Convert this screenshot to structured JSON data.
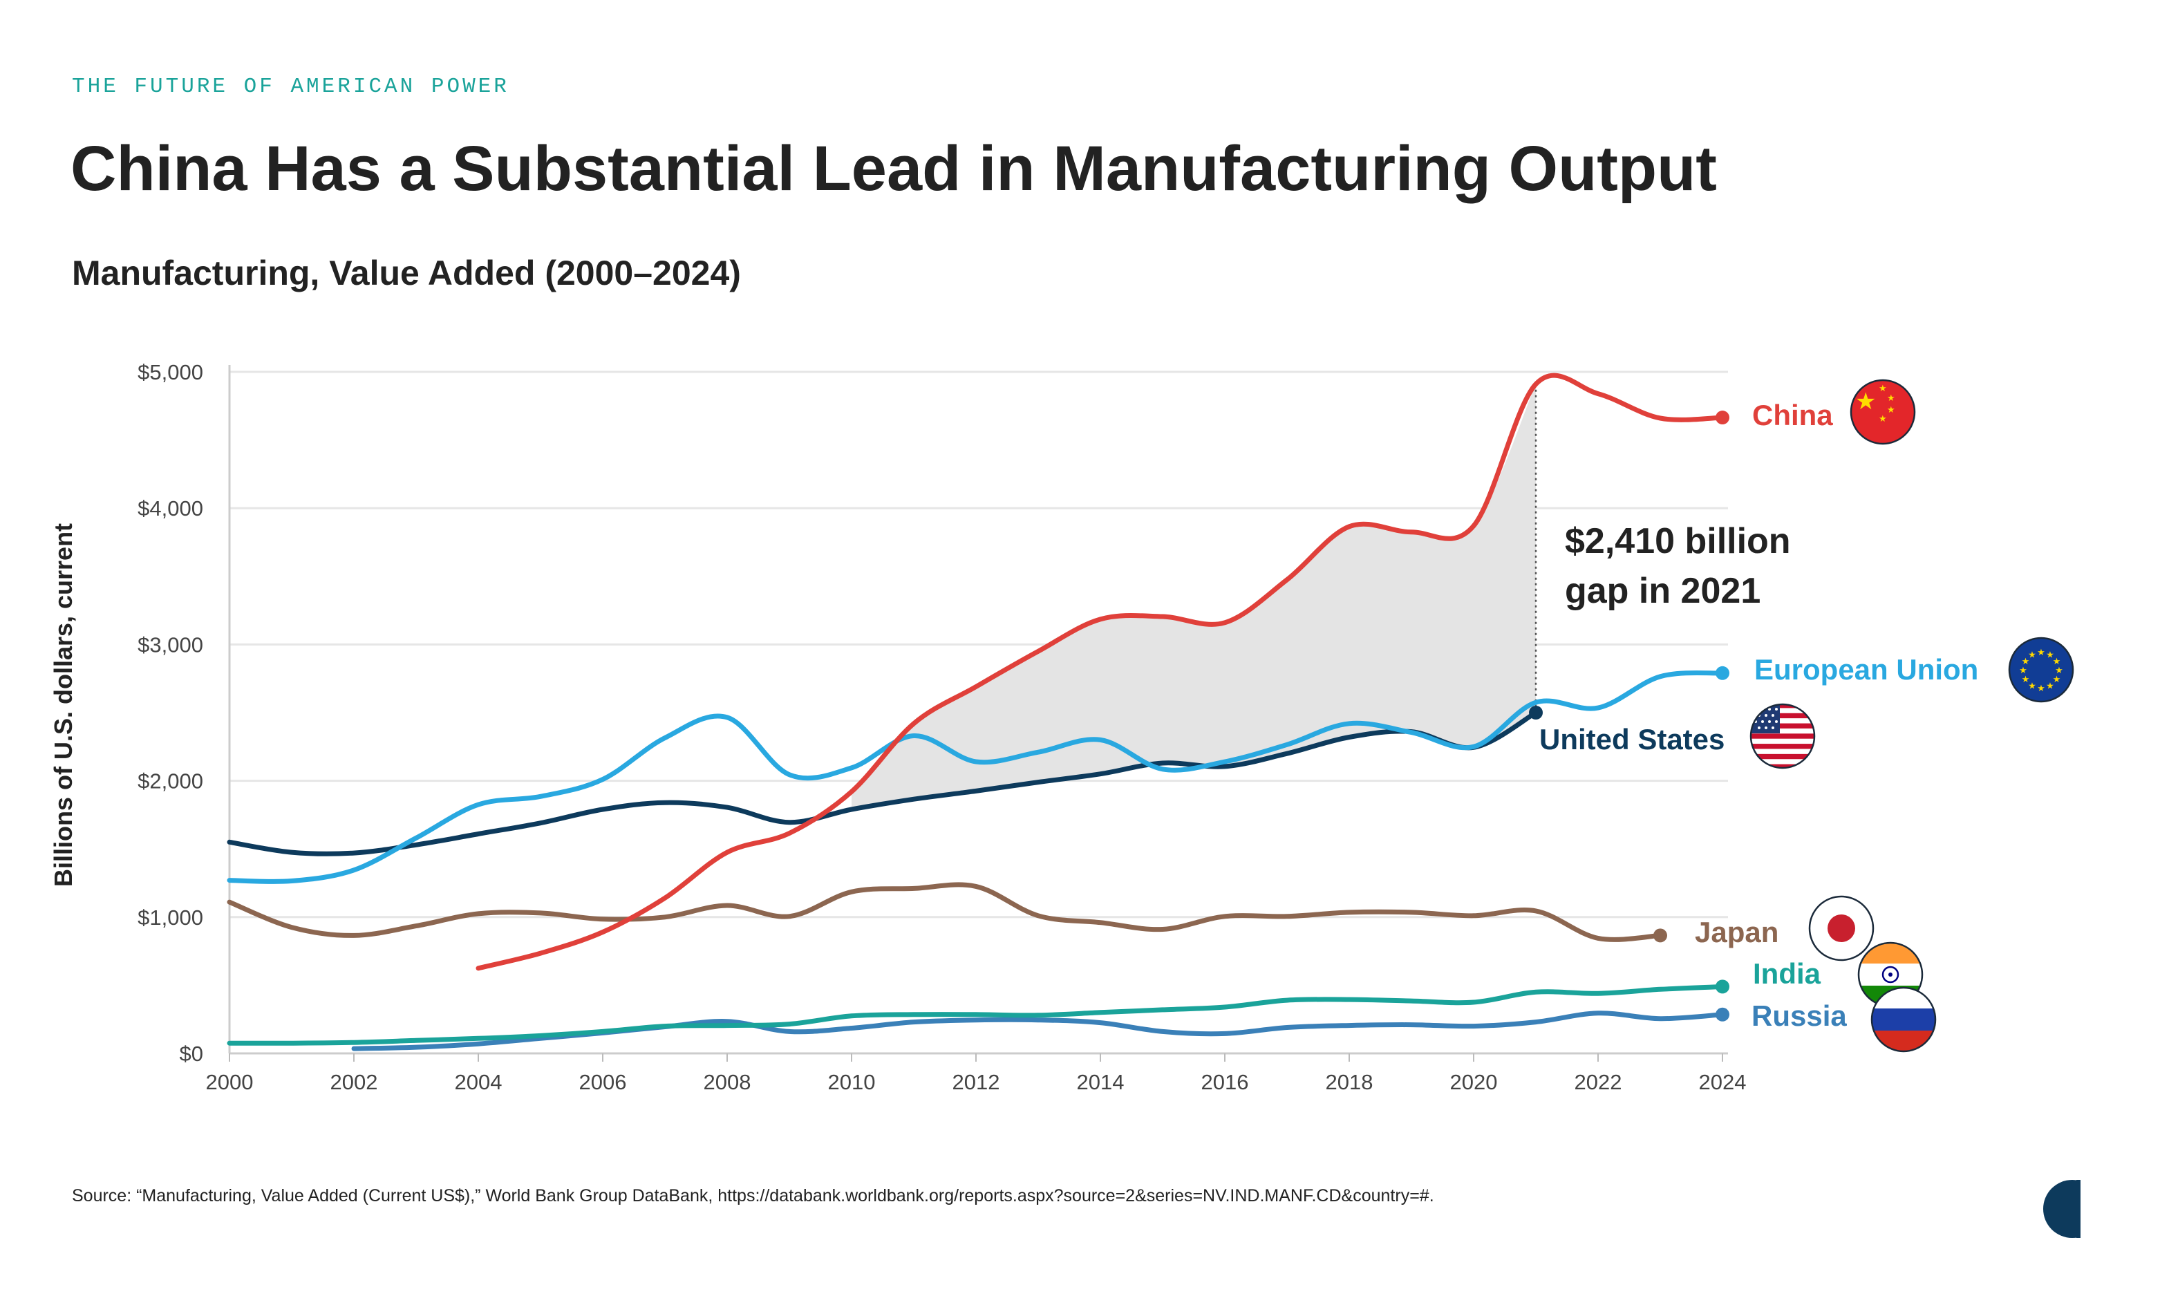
{
  "header": {
    "kicker": "THE FUTURE OF AMERICAN POWER",
    "title": "China Has a Substantial Lead in Manufacturing Output",
    "subtitle": "Manufacturing, Value Added (2000–2024)"
  },
  "footer": {
    "source": "Source: “Manufacturing, Value Added (Current US$),” World Bank Group DataBank, https://databank.worldbank.org/reports.aspx?source=2&series=NV.IND.MANF.CD&country=#."
  },
  "chart_data": {
    "type": "line",
    "ylabel": "Billions of U.S. dollars, current",
    "xlim": [
      2000,
      2024
    ],
    "ylim": [
      0,
      5000
    ],
    "x_ticks": [
      2000,
      2002,
      2004,
      2006,
      2008,
      2010,
      2012,
      2014,
      2016,
      2018,
      2020,
      2022,
      2024
    ],
    "y_ticks": [
      {
        "value": 0,
        "label": "$0"
      },
      {
        "value": 1000,
        "label": "$1,000"
      },
      {
        "value": 2000,
        "label": "$2,000"
      },
      {
        "value": 3000,
        "label": "$3,000"
      },
      {
        "value": 4000,
        "label": "$4,000"
      },
      {
        "value": 5000,
        "label": "$5,000"
      }
    ],
    "grid": "horizontal",
    "legend": "direct labels at line ends, right, with flag icons",
    "series": [
      {
        "name": "China",
        "color": "#e0403a",
        "flag_icon": "china-flag-icon",
        "x": [
          2004,
          2005,
          2006,
          2007,
          2008,
          2009,
          2010,
          2011,
          2012,
          2013,
          2014,
          2015,
          2016,
          2017,
          2018,
          2019,
          2020,
          2021,
          2022,
          2023,
          2024
        ],
        "y": [
          625,
          735,
          890,
          1140,
          1475,
          1615,
          1920,
          2420,
          2690,
          2950,
          3185,
          3205,
          3160,
          3475,
          3865,
          3825,
          3870,
          4910,
          4840,
          4660,
          4665
        ]
      },
      {
        "name": "European Union",
        "color": "#29a8e0",
        "flag_icon": "eu-flag-icon",
        "x": [
          2000,
          2001,
          2002,
          2003,
          2004,
          2005,
          2006,
          2007,
          2008,
          2009,
          2010,
          2011,
          2012,
          2013,
          2014,
          2015,
          2016,
          2017,
          2018,
          2019,
          2020,
          2021,
          2022,
          2023,
          2024
        ],
        "y": [
          1270,
          1265,
          1345,
          1580,
          1825,
          1885,
          2010,
          2315,
          2465,
          2045,
          2095,
          2330,
          2140,
          2210,
          2300,
          2085,
          2140,
          2265,
          2420,
          2355,
          2250,
          2575,
          2535,
          2765,
          2790
        ]
      },
      {
        "name": "United States",
        "color": "#0d3a5c",
        "flag_icon": "us-flag-icon",
        "x": [
          2000,
          2001,
          2002,
          2003,
          2004,
          2005,
          2006,
          2007,
          2008,
          2009,
          2010,
          2011,
          2012,
          2013,
          2014,
          2015,
          2016,
          2017,
          2018,
          2019,
          2020,
          2021
        ],
        "y": [
          1550,
          1475,
          1470,
          1530,
          1610,
          1690,
          1790,
          1840,
          1805,
          1695,
          1790,
          1865,
          1925,
          1990,
          2050,
          2130,
          2105,
          2200,
          2320,
          2360,
          2245,
          2500
        ]
      },
      {
        "name": "Japan",
        "color": "#8c6650",
        "flag_icon": "japan-flag-icon",
        "x": [
          2000,
          2001,
          2002,
          2003,
          2004,
          2005,
          2006,
          2007,
          2008,
          2009,
          2010,
          2011,
          2012,
          2013,
          2014,
          2015,
          2016,
          2017,
          2018,
          2019,
          2020,
          2021,
          2022,
          2023
        ],
        "y": [
          1110,
          925,
          865,
          935,
          1025,
          1030,
          985,
          1000,
          1085,
          1005,
          1185,
          1210,
          1225,
          1010,
          960,
          910,
          1005,
          1005,
          1035,
          1035,
          1010,
          1045,
          845,
          865
        ]
      },
      {
        "name": "India",
        "color": "#1aa39a",
        "flag_icon": "india-flag-icon",
        "x": [
          2000,
          2001,
          2002,
          2003,
          2004,
          2005,
          2006,
          2007,
          2008,
          2009,
          2010,
          2011,
          2012,
          2013,
          2014,
          2015,
          2016,
          2017,
          2018,
          2019,
          2020,
          2021,
          2022,
          2023,
          2024
        ],
        "y": [
          75,
          75,
          80,
          95,
          110,
          130,
          160,
          200,
          205,
          215,
          275,
          285,
          285,
          280,
          300,
          320,
          340,
          390,
          395,
          385,
          375,
          450,
          440,
          470,
          490
        ]
      },
      {
        "name": "Russia",
        "color": "#3a80b8",
        "flag_icon": "russia-flag-icon",
        "x": [
          2002,
          2003,
          2004,
          2005,
          2006,
          2007,
          2008,
          2009,
          2010,
          2011,
          2012,
          2013,
          2014,
          2015,
          2016,
          2017,
          2018,
          2019,
          2020,
          2021,
          2022,
          2023,
          2024
        ],
        "y": [
          35,
          45,
          70,
          110,
          150,
          195,
          235,
          160,
          185,
          230,
          245,
          245,
          225,
          160,
          145,
          190,
          205,
          210,
          200,
          230,
          295,
          255,
          285
        ]
      }
    ],
    "shaded_gap": {
      "between": [
        "China",
        "United States"
      ],
      "x_range": [
        2010,
        2021
      ]
    },
    "annotations": [
      {
        "x": 2021,
        "lines": [
          "$2,410 billion",
          "gap in 2021"
        ]
      }
    ]
  },
  "logo": {
    "name": "publisher-logo"
  }
}
